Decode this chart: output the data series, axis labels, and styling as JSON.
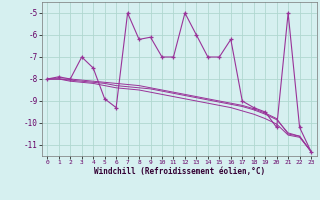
{
  "xlabel": "Windchill (Refroidissement éolien,°C)",
  "background_color": "#d6f0f0",
  "grid_color": "#b0d8d0",
  "line_color": "#993399",
  "x_hours": [
    0,
    1,
    2,
    3,
    4,
    5,
    6,
    7,
    8,
    9,
    10,
    11,
    12,
    13,
    14,
    15,
    16,
    17,
    18,
    19,
    20,
    21,
    22,
    23
  ],
  "y_main": [
    -8.0,
    -7.9,
    -8.0,
    -7.0,
    -7.5,
    -8.9,
    -9.3,
    -5.0,
    -6.2,
    -6.1,
    -7.0,
    -7.0,
    -5.0,
    -6.0,
    -7.0,
    -7.0,
    -6.2,
    -9.0,
    -9.3,
    -9.5,
    -10.2,
    -5.0,
    -10.2,
    -11.3
  ],
  "y_line1": [
    -8.0,
    -8.0,
    -8.05,
    -8.1,
    -8.15,
    -8.2,
    -8.3,
    -8.35,
    -8.4,
    -8.45,
    -8.55,
    -8.65,
    -8.75,
    -8.85,
    -8.95,
    -9.05,
    -9.15,
    -9.25,
    -9.4,
    -9.6,
    -9.85,
    -10.45,
    -10.6,
    -11.3
  ],
  "y_line2": [
    -8.0,
    -8.0,
    -8.1,
    -8.15,
    -8.2,
    -8.3,
    -8.4,
    -8.45,
    -8.5,
    -8.6,
    -8.7,
    -8.8,
    -8.9,
    -9.0,
    -9.1,
    -9.2,
    -9.3,
    -9.45,
    -9.6,
    -9.8,
    -10.05,
    -10.55,
    -10.65,
    -11.3
  ],
  "y_line3": [
    -8.0,
    -8.0,
    -8.0,
    -8.05,
    -8.1,
    -8.15,
    -8.2,
    -8.25,
    -8.3,
    -8.4,
    -8.5,
    -8.6,
    -8.7,
    -8.8,
    -8.9,
    -9.0,
    -9.1,
    -9.2,
    -9.35,
    -9.55,
    -9.8,
    -10.5,
    -10.6,
    -11.3
  ],
  "ylim": [
    -11.5,
    -4.5
  ],
  "yticks": [
    -11,
    -10,
    -9,
    -8,
    -7,
    -6,
    -5
  ],
  "xlim": [
    -0.5,
    23.5
  ],
  "figsize": [
    3.2,
    2.0
  ],
  "dpi": 100
}
